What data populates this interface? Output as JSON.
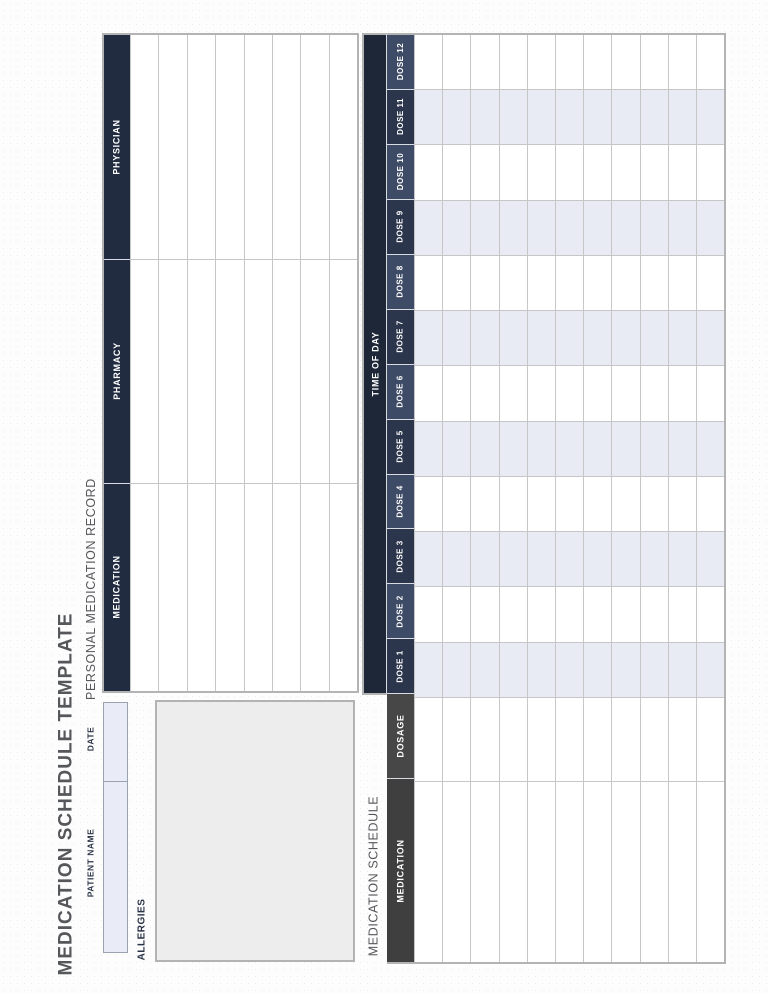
{
  "page": {
    "title": "MEDICATION SCHEDULE TEMPLATE"
  },
  "form": {
    "patient_name_label": "PATIENT NAME",
    "patient_name_value": "",
    "date_label": "DATE",
    "date_value": "",
    "allergies_label": "ALLERGIES",
    "allergies_value": ""
  },
  "personal_record": {
    "section_title": "PERSONAL MEDICATION RECORD",
    "columns": [
      "MEDICATION",
      "PHARMACY",
      "PHYSICIAN"
    ],
    "row_count": 8,
    "rows": [
      [
        "",
        "",
        ""
      ],
      [
        "",
        "",
        ""
      ],
      [
        "",
        "",
        ""
      ],
      [
        "",
        "",
        ""
      ],
      [
        "",
        "",
        ""
      ],
      [
        "",
        "",
        ""
      ],
      [
        "",
        "",
        ""
      ],
      [
        "",
        "",
        ""
      ]
    ]
  },
  "schedule": {
    "section_title": "MEDICATION SCHEDULE",
    "medication_label": "MEDICATION",
    "dosage_label": "DOSAGE",
    "time_of_day_label": "TIME OF DAY",
    "dose_headers": [
      "DOSE 1",
      "DOSE 2",
      "DOSE 3",
      "DOSE 4",
      "DOSE 5",
      "DOSE 6",
      "DOSE 7",
      "DOSE 8",
      "DOSE 9",
      "DOSE 10",
      "DOSE 11",
      "DOSE 12"
    ],
    "row_count": 11,
    "rows": [
      {
        "medication": "",
        "dosage": "",
        "doses": [
          "",
          "",
          "",
          "",
          "",
          "",
          "",
          "",
          "",
          "",
          "",
          ""
        ]
      },
      {
        "medication": "",
        "dosage": "",
        "doses": [
          "",
          "",
          "",
          "",
          "",
          "",
          "",
          "",
          "",
          "",
          "",
          ""
        ]
      },
      {
        "medication": "",
        "dosage": "",
        "doses": [
          "",
          "",
          "",
          "",
          "",
          "",
          "",
          "",
          "",
          "",
          "",
          ""
        ]
      },
      {
        "medication": "",
        "dosage": "",
        "doses": [
          "",
          "",
          "",
          "",
          "",
          "",
          "",
          "",
          "",
          "",
          "",
          ""
        ]
      },
      {
        "medication": "",
        "dosage": "",
        "doses": [
          "",
          "",
          "",
          "",
          "",
          "",
          "",
          "",
          "",
          "",
          "",
          ""
        ]
      },
      {
        "medication": "",
        "dosage": "",
        "doses": [
          "",
          "",
          "",
          "",
          "",
          "",
          "",
          "",
          "",
          "",
          "",
          ""
        ]
      },
      {
        "medication": "",
        "dosage": "",
        "doses": [
          "",
          "",
          "",
          "",
          "",
          "",
          "",
          "",
          "",
          "",
          "",
          ""
        ]
      },
      {
        "medication": "",
        "dosage": "",
        "doses": [
          "",
          "",
          "",
          "",
          "",
          "",
          "",
          "",
          "",
          "",
          "",
          ""
        ]
      },
      {
        "medication": "",
        "dosage": "",
        "doses": [
          "",
          "",
          "",
          "",
          "",
          "",
          "",
          "",
          "",
          "",
          "",
          ""
        ]
      },
      {
        "medication": "",
        "dosage": "",
        "doses": [
          "",
          "",
          "",
          "",
          "",
          "",
          "",
          "",
          "",
          "",
          "",
          ""
        ]
      },
      {
        "medication": "",
        "dosage": "",
        "doses": [
          "",
          "",
          "",
          "",
          "",
          "",
          "",
          "",
          "",
          "",
          "",
          ""
        ]
      }
    ]
  },
  "colors": {
    "header_navy": "#212c41",
    "time_of_day_navy": "#1d2737",
    "dose_header_dark": "#2b354b",
    "dose_header_light": "#3e4b66",
    "dosage_charcoal": "#474747",
    "medication_charcoal": "#3f3f3f",
    "dose_band_blue": "#e8ebf4",
    "input_fill": "#e9ecf6",
    "allergies_fill": "#ededed",
    "title_gray": "#56575a",
    "label_navy": "#2a3447",
    "grid_border": "#c6c6c6",
    "outer_border": "#b3b3b3"
  }
}
